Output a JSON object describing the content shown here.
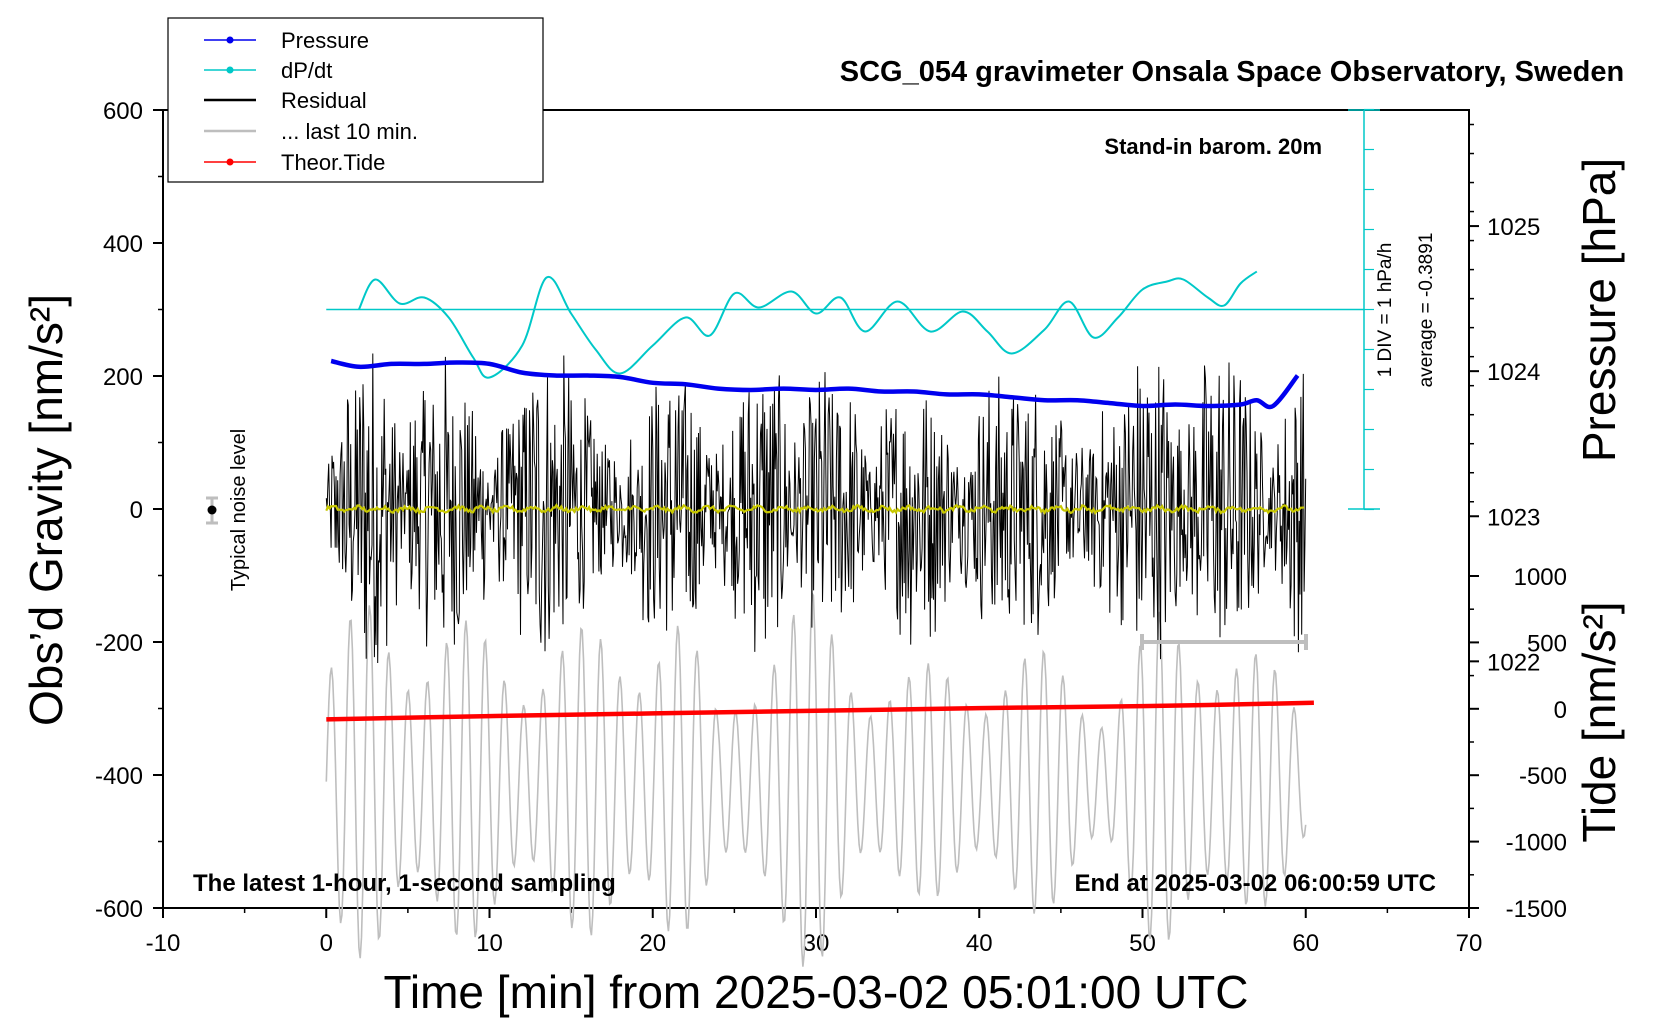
{
  "chart_data": {
    "type": "line",
    "title": "SCG_054 gravimeter Onsala Space Observatory, Sweden",
    "subtitle": "Stand-in barom. 20m",
    "xlabel": "Time [min] from 2025-03-02 05:01:00 UTC",
    "xlim": [
      -10,
      70
    ],
    "xticks": [
      "-10",
      "0",
      "10",
      "20",
      "30",
      "40",
      "50",
      "60",
      "70"
    ],
    "left_axis": {
      "label": "Obs’d Gravity [nm/s²]",
      "ylim": [
        -600,
        600
      ],
      "ticks": [
        "600",
        "400",
        "200",
        "0",
        "-200",
        "-400",
        "-600"
      ]
    },
    "pressure_axis": {
      "label": "Pressure [hPa]",
      "ylim": [
        1020.3,
        1025.8
      ],
      "ticks": [
        "1025",
        "1024",
        "1023",
        "1022"
      ]
    },
    "tide_axis": {
      "label": "Tide [nm/s²]",
      "ylim": [
        -1500,
        1000
      ],
      "ticks": [
        "1000",
        "500",
        "0",
        "-500",
        "-1000",
        "-1500"
      ]
    },
    "dpdt_scale_label": "1 DIV = 1 hPa/h",
    "dpdt_average_label": "average = -0.3891",
    "noise_label": "Typical noise level",
    "footer_left": "The latest 1-hour, 1-second sampling",
    "footer_right": "End at 2025-03-02 06:00:59 UTC",
    "legend": [
      "Pressure",
      "dP/dt",
      "Residual",
      "... last 10 min.",
      "Theor.Tide"
    ],
    "series": [
      {
        "name": "Pressure",
        "unit": "hPa",
        "color": "#0000ee",
        "x": [
          0.3,
          2,
          4,
          6,
          8,
          10,
          12,
          14,
          16,
          18,
          20,
          22,
          24,
          26,
          28,
          30,
          32,
          34,
          36,
          38,
          40,
          42,
          44,
          46,
          48,
          50,
          52,
          54,
          56,
          57,
          58,
          59.5
        ],
        "y": [
          1024.07,
          1024.03,
          1024.05,
          1024.05,
          1024.06,
          1024.05,
          1023.99,
          1023.97,
          1023.97,
          1023.96,
          1023.92,
          1023.91,
          1023.88,
          1023.87,
          1023.88,
          1023.87,
          1023.88,
          1023.86,
          1023.86,
          1023.84,
          1023.84,
          1023.82,
          1023.8,
          1023.8,
          1023.78,
          1023.76,
          1023.77,
          1023.76,
          1023.77,
          1023.8,
          1023.76,
          1023.97
        ]
      },
      {
        "name": "dP/dt",
        "unit": "hPa/h",
        "color": "#00c8c8",
        "average": -0.3891,
        "x": [
          2,
          3,
          4.5,
          6,
          7.5,
          9,
          10,
          12,
          13.5,
          15,
          16.5,
          18,
          20,
          22,
          23.5,
          25,
          26.5,
          28.5,
          30,
          31.5,
          33,
          35,
          37,
          39,
          40.5,
          42,
          44,
          45.5,
          47,
          48.5,
          50,
          51.5,
          52.5,
          54,
          55,
          56,
          57
        ],
        "y": [
          0.0,
          0.75,
          0.15,
          0.3,
          -0.2,
          -1.2,
          -1.7,
          -0.9,
          0.8,
          -0.1,
          -1.0,
          -1.6,
          -0.9,
          -0.2,
          -0.65,
          0.4,
          0.05,
          0.45,
          -0.1,
          0.3,
          -0.55,
          0.2,
          -0.55,
          -0.05,
          -0.55,
          -1.1,
          -0.5,
          0.2,
          -0.7,
          -0.2,
          0.5,
          0.7,
          0.75,
          0.3,
          0.1,
          0.65,
          0.95
        ]
      },
      {
        "name": "Residual",
        "unit": "nm/s²",
        "color": "#000000",
        "x": [
          0,
          3,
          6,
          9,
          12,
          15,
          18,
          21,
          24,
          27,
          30,
          33,
          36,
          39,
          42,
          45,
          48,
          51,
          54,
          57,
          60
        ],
        "y_envelope": [
          150,
          270,
          230,
          200,
          240,
          210,
          170,
          220,
          190,
          230,
          215,
          180,
          210,
          195,
          200,
          190,
          180,
          260,
          275,
          180,
          220
        ]
      },
      {
        "name": "... last 10 min.",
        "unit": "nm/s²",
        "color": "#bebebe",
        "x": [
          0,
          3,
          6,
          9,
          12,
          15,
          18,
          21,
          24,
          27,
          30,
          33,
          36,
          39,
          42,
          45,
          48,
          51,
          54,
          57,
          60
        ],
        "y_envelope": [
          200,
          300,
          260,
          240,
          230,
          230,
          250,
          300,
          120,
          270,
          290,
          200,
          170,
          200,
          200,
          200,
          150,
          260,
          280,
          200,
          130
        ]
      },
      {
        "name": "Theor.Tide",
        "unit": "nm/s²",
        "color": "#ff0000",
        "x": [
          0,
          10,
          20,
          30,
          40,
          50,
          60.5
        ],
        "y": [
          -80,
          -55,
          -35,
          -15,
          5,
          20,
          45
        ]
      }
    ]
  }
}
